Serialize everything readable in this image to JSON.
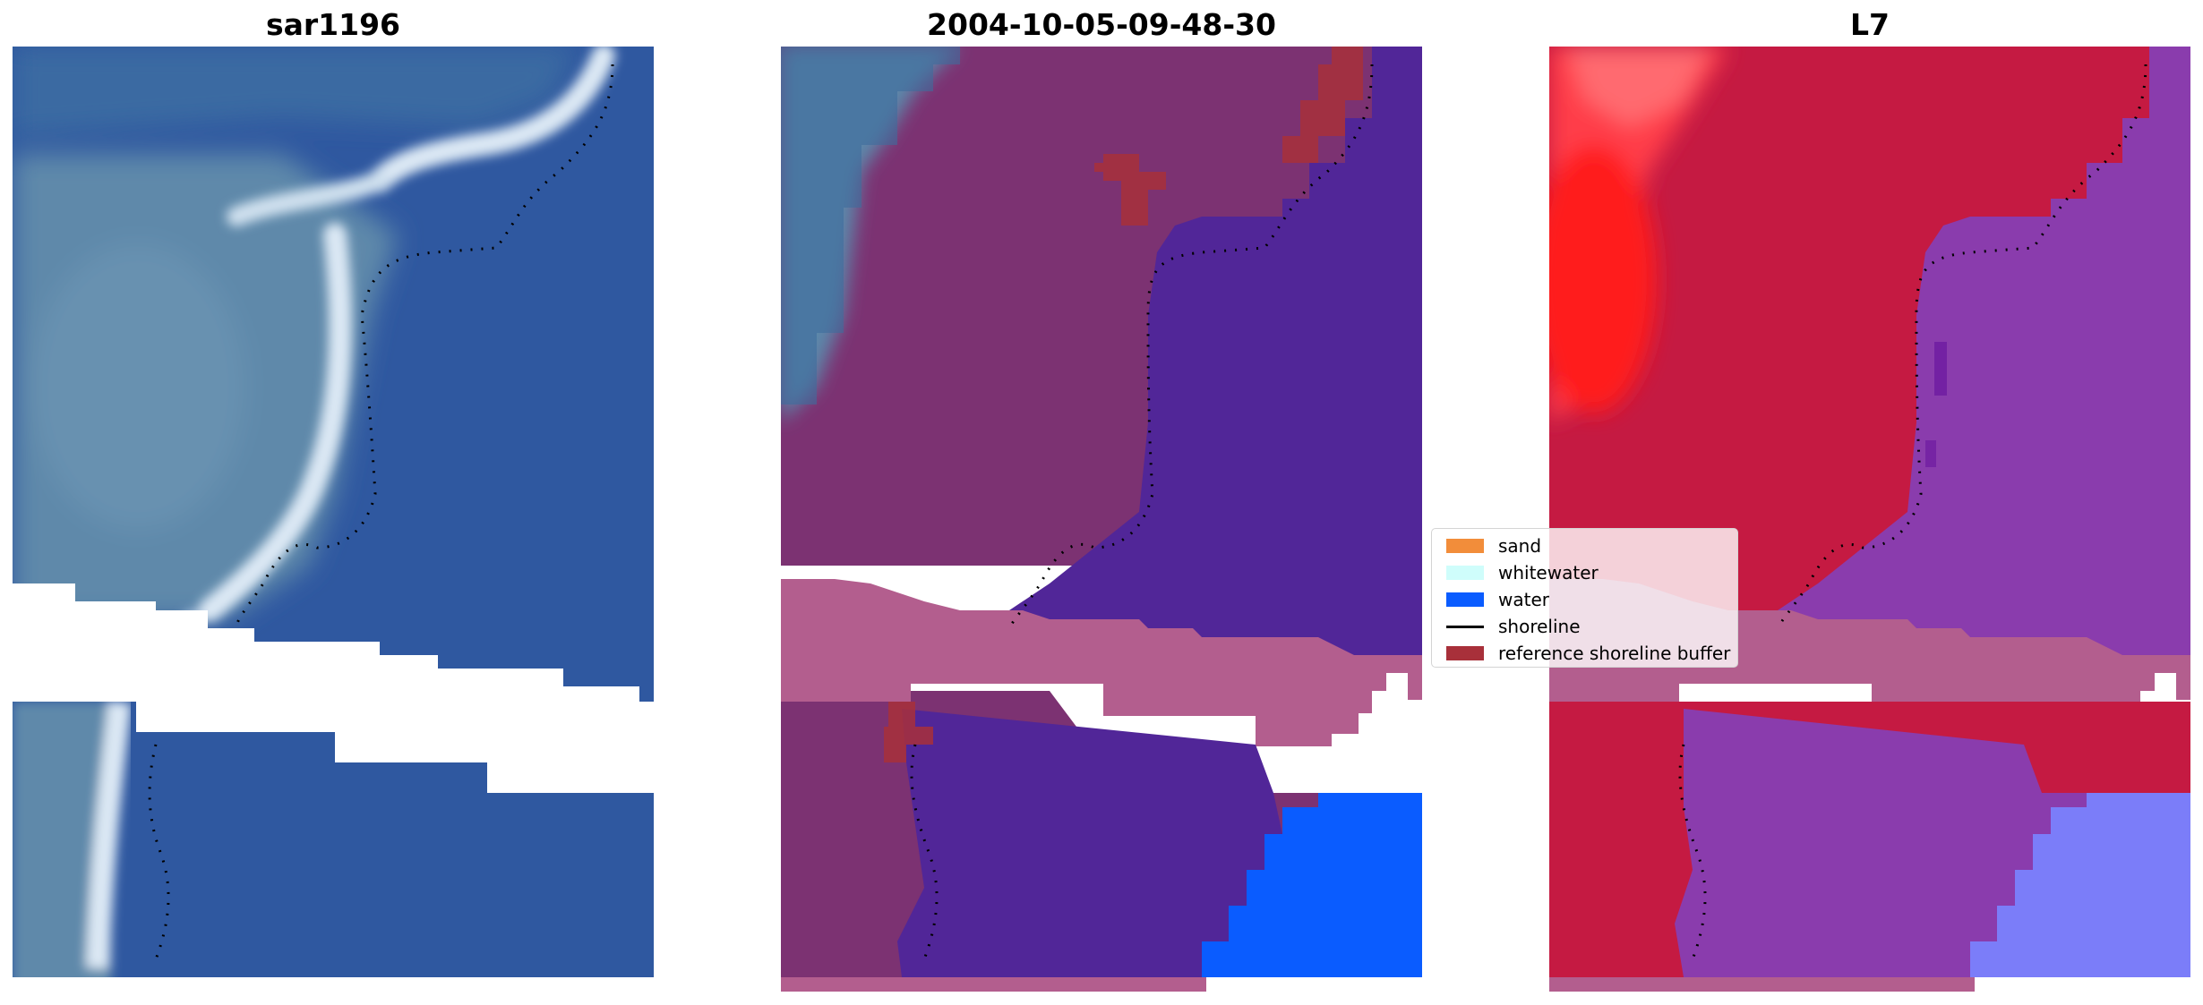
{
  "panels": [
    {
      "title": "sar1196"
    },
    {
      "title": "2004-10-05-09-48-30"
    },
    {
      "title": "L7"
    }
  ],
  "legend": {
    "items": [
      {
        "label": "sand",
        "type": "patch",
        "color": "#f28d3a"
      },
      {
        "label": "whitewater",
        "type": "patch",
        "color": "#cffdfb"
      },
      {
        "label": "water",
        "type": "patch",
        "color": "#0a5cff"
      },
      {
        "label": "shoreline",
        "type": "line",
        "color": "#000000"
      },
      {
        "label": "reference shoreline buffer",
        "type": "patch",
        "color": "#a8303a"
      }
    ]
  },
  "colors": {
    "sea_rgb": "#2f58a0",
    "land_rgb": "#5c86a8",
    "surf_rgb": "#d8e6f2",
    "class_water": "#512698",
    "class_land": "#7c3272",
    "class_buffer": "#b35e8e",
    "class_water_bright": "#0a5cff",
    "index_land": "#c51a42",
    "index_water": "#8a3cad",
    "index_bright_water": "#7b7df9",
    "index_strong": "#ff2020"
  }
}
